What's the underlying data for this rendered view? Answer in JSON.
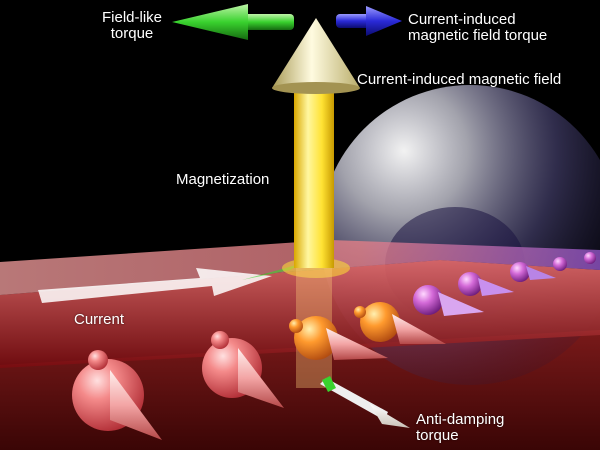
{
  "labels": {
    "field_like_torque": [
      "Field-like",
      "torque"
    ],
    "current_induced_field_torque": [
      "Current-induced",
      "magnetic field torque"
    ],
    "current_induced_field": "Current-induced magnetic field",
    "magnetization": "Magnetization",
    "current": "Current",
    "anti_damping_torque": [
      "Anti-damping",
      "torque"
    ]
  },
  "colors": {
    "background": "#000000",
    "layer": "#f08c8c",
    "magnetization_arrow": "#ffe233",
    "field_like_arrow": "#39d22e",
    "field_torque_arrow": "#2a2ad8",
    "spin": "#f26b6b",
    "current_arrow": "#ffffff"
  }
}
